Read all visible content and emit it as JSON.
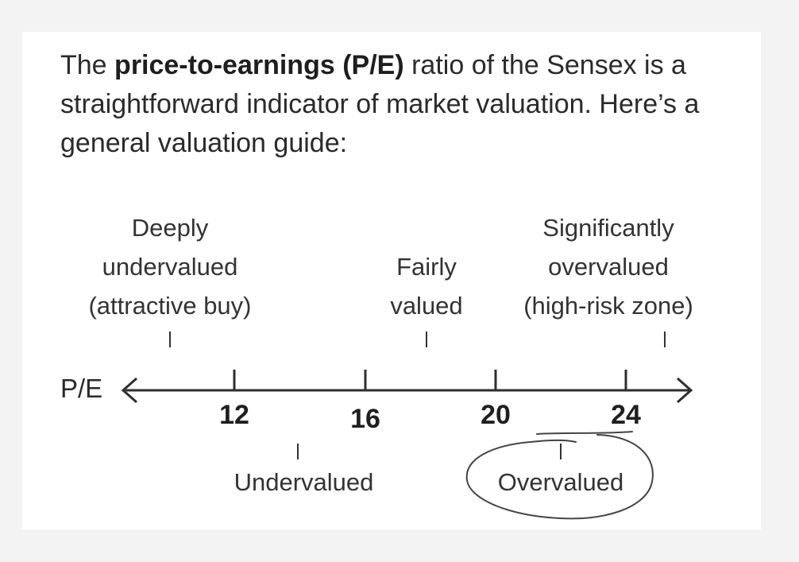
{
  "intro": {
    "text_before": "The ",
    "bold": "price-to-earnings (P/E)",
    "text_after": " ratio of the Sensex is a straightforward indicator of market valuation. Here’s a general valuation guide:"
  },
  "axis": {
    "label": "P/E",
    "ticks": [
      "12",
      "16",
      "20",
      "24"
    ]
  },
  "zones_above": {
    "deep": "Deeply\nundervalued\n(attractive buy)",
    "fair": "Fairly\nvalued",
    "significant": "Significantly\novervalued\n(high-risk zone)"
  },
  "zones_below": {
    "under": "Undervalued",
    "over": "Overvalued"
  },
  "colors": {
    "ink": "#333333",
    "line": "#2e2e2e",
    "pen": "#444444"
  }
}
